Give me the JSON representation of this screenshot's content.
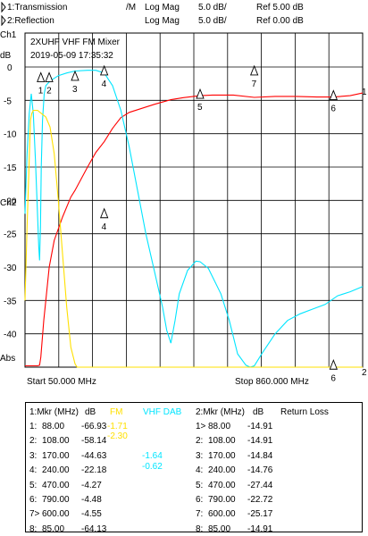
{
  "header": {
    "trace1": {
      "label": "1:Transmission",
      "format": "/M",
      "scale_type": "Log Mag",
      "scale": "5.0 dB/",
      "ref": "Ref  5.00 dB"
    },
    "trace2": {
      "label": "2:Reflection",
      "format": "",
      "scale_type": "Log Mag",
      "scale": "5.0 dB/",
      "ref": "Ref  0.00 dB"
    }
  },
  "chart_data": {
    "type": "line",
    "title": "2XUHF VHF FM Mixer",
    "subtitle": "2019-05-09 17:35:32",
    "channel1": "Ch1",
    "channel2": "Ch2",
    "ylabel": "dB",
    "abs_label": "Abs",
    "start_label": "Start 50.000 MHz",
    "stop_label": "Stop 860.000 MHz",
    "xlim": [
      50,
      860
    ],
    "ylim": [
      -45,
      0
    ],
    "yticks": [
      "0",
      "-5",
      "-10",
      "-15",
      "-20",
      "-25",
      "-30",
      "-35",
      "-40"
    ],
    "grid": true,
    "colors": {
      "grid": "#000000",
      "transmission": "#ff0000",
      "reflection": "#00e5ff",
      "yellow": "#ffe000"
    },
    "series": [
      {
        "name": "1:Transmission",
        "color": "#ff0000",
        "points": [
          [
            50,
            -44.8
          ],
          [
            60,
            -44.8
          ],
          [
            70,
            -44.8
          ],
          [
            80,
            -44.8
          ],
          [
            85,
            -44.7
          ],
          [
            88,
            -43.5
          ],
          [
            95,
            -38
          ],
          [
            100,
            -35
          ],
          [
            108,
            -30
          ],
          [
            120,
            -26
          ],
          [
            140,
            -22.5
          ],
          [
            160,
            -19.5
          ],
          [
            170,
            -18.5
          ],
          [
            200,
            -15
          ],
          [
            220,
            -12.8
          ],
          [
            240,
            -11.2
          ],
          [
            260,
            -9.2
          ],
          [
            280,
            -7.6
          ],
          [
            300,
            -6.8
          ],
          [
            330,
            -6.2
          ],
          [
            360,
            -5.6
          ],
          [
            400,
            -4.9
          ],
          [
            430,
            -4.6
          ],
          [
            470,
            -4.3
          ],
          [
            500,
            -4.2
          ],
          [
            550,
            -4.2
          ],
          [
            600,
            -4.55
          ],
          [
            650,
            -4.4
          ],
          [
            700,
            -4.4
          ],
          [
            750,
            -4.5
          ],
          [
            790,
            -4.5
          ],
          [
            830,
            -4.3
          ],
          [
            860,
            -3.9
          ]
        ]
      },
      {
        "name": "2:Reflection",
        "color": "#00e5ff",
        "points": [
          [
            50,
            -22
          ],
          [
            55,
            -13
          ],
          [
            60,
            -7
          ],
          [
            65,
            -4
          ],
          [
            70,
            -7
          ],
          [
            75,
            -14
          ],
          [
            80,
            -22
          ],
          [
            83,
            -27
          ],
          [
            85,
            -29
          ],
          [
            87,
            -24
          ],
          [
            89,
            -15
          ],
          [
            92,
            -8
          ],
          [
            96,
            -4
          ],
          [
            100,
            -2.8
          ],
          [
            110,
            -2.1
          ],
          [
            130,
            -1.3
          ],
          [
            150,
            -0.9
          ],
          [
            170,
            -0.6
          ],
          [
            200,
            -0.5
          ],
          [
            220,
            -0.5
          ],
          [
            240,
            -0.9
          ],
          [
            260,
            -2.8
          ],
          [
            280,
            -6.5
          ],
          [
            300,
            -12
          ],
          [
            320,
            -18.5
          ],
          [
            340,
            -25
          ],
          [
            360,
            -30.5
          ],
          [
            380,
            -36
          ],
          [
            390,
            -39.5
          ],
          [
            400,
            -41.4
          ],
          [
            410,
            -38
          ],
          [
            420,
            -34
          ],
          [
            440,
            -30.5
          ],
          [
            460,
            -29.1
          ],
          [
            470,
            -29.2
          ],
          [
            490,
            -30.2
          ],
          [
            520,
            -34
          ],
          [
            540,
            -38
          ],
          [
            560,
            -43
          ],
          [
            580,
            -44.7
          ],
          [
            590,
            -45
          ],
          [
            600,
            -44.8
          ],
          [
            620,
            -42.8
          ],
          [
            650,
            -40
          ],
          [
            680,
            -38
          ],
          [
            710,
            -37
          ],
          [
            740,
            -36.3
          ],
          [
            770,
            -35.6
          ],
          [
            800,
            -34.3
          ],
          [
            830,
            -33.7
          ],
          [
            860,
            -32.9
          ]
        ]
      },
      {
        "name": "",
        "color": "#ffe000",
        "points": [
          [
            50,
            -35
          ],
          [
            55,
            -24
          ],
          [
            60,
            -14
          ],
          [
            63,
            -8
          ],
          [
            66,
            -7
          ],
          [
            70,
            -6.5
          ],
          [
            80,
            -6.5
          ],
          [
            90,
            -7
          ],
          [
            100,
            -7.5
          ],
          [
            110,
            -9
          ],
          [
            120,
            -13
          ],
          [
            130,
            -20
          ],
          [
            140,
            -28
          ],
          [
            150,
            -36
          ],
          [
            160,
            -42
          ],
          [
            170,
            -44.5
          ],
          [
            175,
            -45
          ],
          [
            860,
            -45
          ]
        ]
      }
    ],
    "trace_markers": [
      {
        "label": "1",
        "x": 88,
        "y": -1.8
      },
      {
        "label": "2",
        "x": 108,
        "y": -1.8
      },
      {
        "label": "3",
        "x": 170,
        "y": -1.6
      },
      {
        "label": "4",
        "x": 240,
        "y": -0.8
      },
      {
        "label": "4",
        "x": 240,
        "y": -22.2
      },
      {
        "label": "5",
        "x": 470,
        "y": -4.3
      },
      {
        "label": "6",
        "x": 790,
        "y": -4.48
      },
      {
        "label": "7",
        "x": 600,
        "y": -0.8
      },
      {
        "label": "6",
        "x": 790,
        "y": -44.9
      }
    ],
    "edge_labels": {
      "trace1_end": "1",
      "trace2_end": "2"
    }
  },
  "marker_table": {
    "left_title": "1:Mkr (MHz)",
    "left_unit": "dB",
    "fm_title": "FM",
    "dab_title": "VHF DAB",
    "right_title": "2:Mkr (MHz)",
    "right_unit": "dB",
    "right_caption": "Return Loss",
    "left_rows": [
      {
        "idx": "1:",
        "freq": "88.00",
        "db": "-66.93"
      },
      {
        "idx": "2:",
        "freq": "108.00",
        "db": "-58.14"
      },
      {
        "idx": "3:",
        "freq": "170.00",
        "db": "-44.63"
      },
      {
        "idx": "4:",
        "freq": "240.00",
        "db": "-22.18"
      },
      {
        "idx": "5:",
        "freq": "470.00",
        "db": "-4.27"
      },
      {
        "idx": "6:",
        "freq": "790.00",
        "db": "-4.48"
      },
      {
        "idx": "7>",
        "freq": "600.00",
        "db": "-4.55"
      },
      {
        "idx": "8:",
        "freq": "85.00",
        "db": "-64.13"
      }
    ],
    "fm_values": [
      "-1.71",
      "-2.30"
    ],
    "dab_values": [
      "-1.64",
      "-0.62"
    ],
    "right_rows": [
      {
        "idx": "1>",
        "freq": "88.00",
        "db": "-14.91"
      },
      {
        "idx": "2:",
        "freq": "108.00",
        "db": "-14.91"
      },
      {
        "idx": "3:",
        "freq": "170.00",
        "db": "-14.84"
      },
      {
        "idx": "4:",
        "freq": "240.00",
        "db": "-14.76"
      },
      {
        "idx": "5:",
        "freq": "470.00",
        "db": "-27.44"
      },
      {
        "idx": "6:",
        "freq": "790.00",
        "db": "-22.72"
      },
      {
        "idx": "7:",
        "freq": "600.00",
        "db": "-25.17"
      },
      {
        "idx": "8:",
        "freq": "85.00",
        "db": "-14.91"
      }
    ]
  }
}
